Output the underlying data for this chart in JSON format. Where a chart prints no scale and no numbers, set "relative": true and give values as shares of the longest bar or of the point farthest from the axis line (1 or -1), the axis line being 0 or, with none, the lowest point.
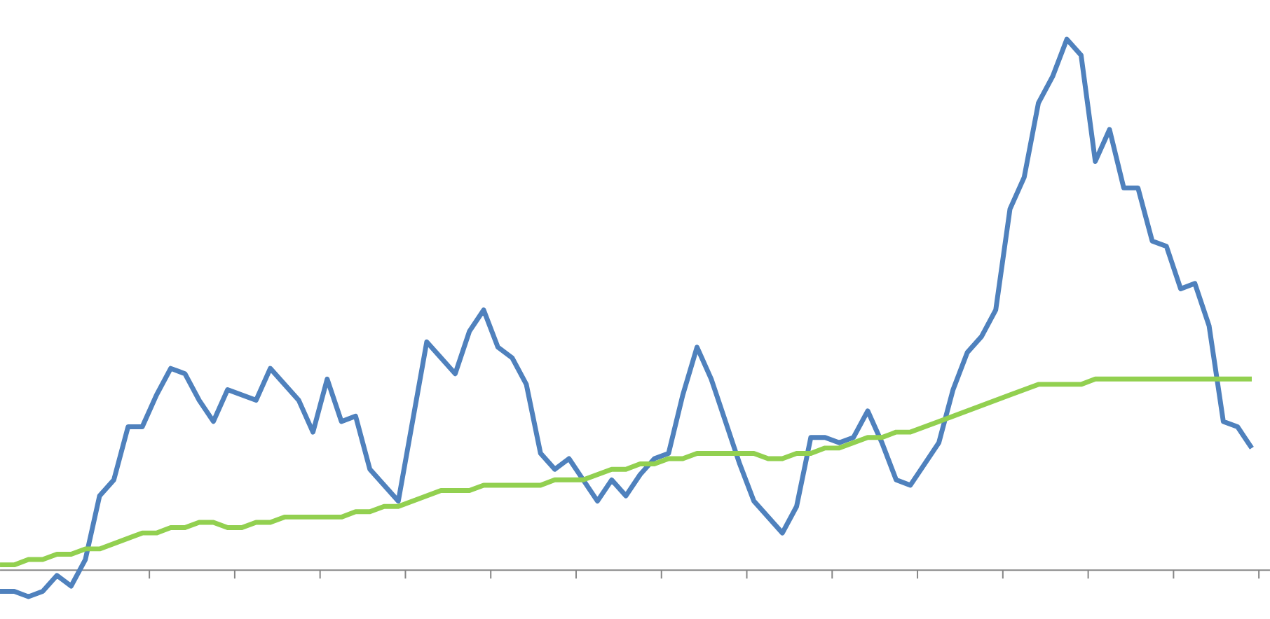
{
  "chart_data": {
    "type": "line",
    "relative": true,
    "categories": [
      null,
      null,
      null,
      null,
      null,
      null,
      null,
      null,
      null,
      null,
      null,
      null,
      null,
      null,
      null,
      null,
      null,
      null,
      null,
      null,
      null,
      null,
      null,
      null,
      null,
      null,
      null,
      null,
      null,
      null,
      null,
      null,
      null,
      null,
      null,
      null,
      null,
      null,
      null,
      null,
      null,
      null,
      null,
      null,
      null,
      null,
      null,
      null,
      null,
      null,
      null,
      null,
      null,
      null,
      null,
      null,
      null,
      null,
      null,
      null,
      null,
      null,
      null,
      null,
      null,
      null,
      null,
      null,
      null,
      null,
      null,
      null,
      null,
      null,
      null,
      null,
      null,
      null,
      null,
      null,
      null,
      null,
      null,
      null,
      null,
      null,
      null,
      null,
      null
    ],
    "marker": "none",
    "line_style": "solid",
    "series": [
      {
        "color": "#4f81bd",
        "values": [
          -0.04,
          -0.04,
          -0.05,
          -0.04,
          -0.01,
          -0.03,
          0.02,
          0.14,
          0.17,
          0.27,
          0.27,
          0.33,
          0.38,
          0.37,
          0.32,
          0.28,
          0.34,
          0.33,
          0.32,
          0.38,
          0.35,
          0.32,
          0.26,
          0.36,
          0.28,
          0.29,
          0.19,
          0.16,
          0.13,
          0.28,
          0.43,
          0.4,
          0.37,
          0.45,
          0.49,
          0.42,
          0.4,
          0.35,
          0.22,
          0.19,
          0.21,
          0.17,
          0.13,
          0.17,
          0.14,
          0.18,
          0.21,
          0.22,
          0.33,
          0.42,
          0.36,
          0.28,
          0.2,
          0.13,
          0.1,
          0.07,
          0.12,
          0.25,
          0.25,
          0.24,
          0.25,
          0.3,
          0.24,
          0.17,
          0.16,
          0.2,
          0.24,
          0.34,
          0.41,
          0.44,
          0.49,
          0.68,
          0.74,
          0.88,
          0.93,
          1,
          0.97,
          0.77,
          0.83,
          0.72,
          0.72,
          0.62,
          0.61,
          0.53,
          0.54,
          0.46,
          0.28,
          0.27,
          0.23
        ]
      },
      {
        "color": "#92d050",
        "values": [
          0.01,
          0.01,
          0.02,
          0.02,
          0.03,
          0.03,
          0.04,
          0.04,
          0.05,
          0.06,
          0.07,
          0.07,
          0.08,
          0.08,
          0.09,
          0.09,
          0.08,
          0.08,
          0.09,
          0.09,
          0.1,
          0.1,
          0.1,
          0.1,
          0.1,
          0.11,
          0.11,
          0.12,
          0.12,
          0.13,
          0.14,
          0.15,
          0.15,
          0.15,
          0.16,
          0.16,
          0.16,
          0.16,
          0.16,
          0.17,
          0.17,
          0.17,
          0.18,
          0.19,
          0.19,
          0.2,
          0.2,
          0.21,
          0.21,
          0.22,
          0.22,
          0.22,
          0.22,
          0.22,
          0.21,
          0.21,
          0.22,
          0.22,
          0.23,
          0.23,
          0.24,
          0.25,
          0.25,
          0.26,
          0.26,
          0.27,
          0.28,
          0.29,
          0.3,
          0.31,
          0.32,
          0.33,
          0.34,
          0.35,
          0.35,
          0.35,
          0.35,
          0.36,
          0.36,
          0.36,
          0.36,
          0.36,
          0.36,
          0.36,
          0.36,
          0.36,
          0.36,
          0.36,
          0.36
        ]
      }
    ]
  }
}
